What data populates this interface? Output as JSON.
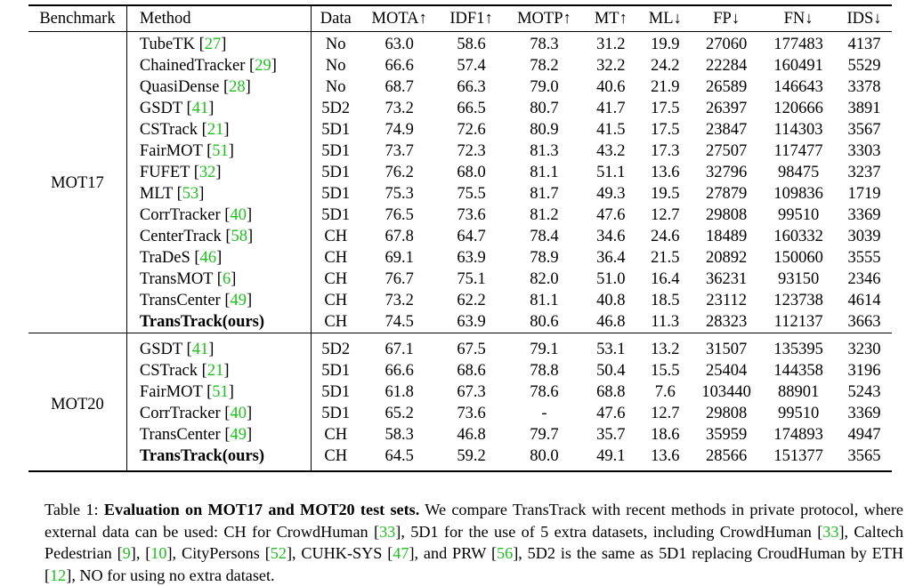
{
  "header": {
    "benchmark": "Benchmark",
    "method": "Method",
    "data": "Data",
    "mota": "MOTA↑",
    "idf1": "IDF1↑",
    "motp": "MOTP↑",
    "mt": "MT↑",
    "ml": "ML↓",
    "fp": "FP↓",
    "fn": "FN↓",
    "ids": "IDS↓"
  },
  "sections": [
    {
      "benchmark": "MOT17",
      "rows": [
        {
          "name": "TubeTK",
          "ref": "27",
          "data": "No",
          "mota": "63.0",
          "idf1": "58.6",
          "motp": "78.3",
          "mt": "31.2",
          "ml": "19.9",
          "fp": "27060",
          "fn": "177483",
          "ids": "4137"
        },
        {
          "name": "ChainedTracker",
          "ref": "29",
          "data": "No",
          "mota": "66.6",
          "idf1": "57.4",
          "motp": "78.2",
          "mt": "32.2",
          "ml": "24.2",
          "fp": "22284",
          "fn": "160491",
          "ids": "5529"
        },
        {
          "name": "QuasiDense",
          "ref": "28",
          "data": "No",
          "mota": "68.7",
          "idf1": "66.3",
          "motp": "79.0",
          "mt": "40.6",
          "ml": "21.9",
          "fp": "26589",
          "fn": "146643",
          "ids": "3378"
        },
        {
          "name": "GSDT",
          "ref": "41",
          "data": "5D2",
          "mota": "73.2",
          "idf1": "66.5",
          "motp": "80.7",
          "mt": "41.7",
          "ml": "17.5",
          "fp": "26397",
          "fn": "120666",
          "ids": "3891"
        },
        {
          "name": "CSTrack",
          "ref": "21",
          "data": "5D1",
          "mota": "74.9",
          "idf1": "72.6",
          "motp": "80.9",
          "mt": "41.5",
          "ml": "17.5",
          "fp": "23847",
          "fn": "114303",
          "ids": "3567"
        },
        {
          "name": "FairMOT",
          "ref": "51",
          "data": "5D1",
          "mota": "73.7",
          "idf1": "72.3",
          "motp": "81.3",
          "mt": "43.2",
          "ml": "17.3",
          "fp": "27507",
          "fn": "117477",
          "ids": "3303"
        },
        {
          "name": "FUFET",
          "ref": "32",
          "data": "5D1",
          "mota": "76.2",
          "idf1": "68.0",
          "motp": "81.1",
          "mt": "51.1",
          "ml": "13.6",
          "fp": "32796",
          "fn": "98475",
          "ids": "3237"
        },
        {
          "name": "MLT",
          "ref": "53",
          "data": "5D1",
          "mota": "75.3",
          "idf1": "75.5",
          "motp": "81.7",
          "mt": "49.3",
          "ml": "19.5",
          "fp": "27879",
          "fn": "109836",
          "ids": "1719"
        },
        {
          "name": "CorrTracker",
          "ref": "40",
          "data": "5D1",
          "mota": "76.5",
          "idf1": "73.6",
          "motp": "81.2",
          "mt": "47.6",
          "ml": "12.7",
          "fp": "29808",
          "fn": "99510",
          "ids": "3369"
        },
        {
          "name": "CenterTrack",
          "ref": "58",
          "data": "CH",
          "mota": "67.8",
          "idf1": "64.7",
          "motp": "78.4",
          "mt": "34.6",
          "ml": "24.6",
          "fp": "18489",
          "fn": "160332",
          "ids": "3039"
        },
        {
          "name": "TraDeS",
          "ref": "46",
          "data": "CH",
          "mota": "69.1",
          "idf1": "63.9",
          "motp": "78.9",
          "mt": "36.4",
          "ml": "21.5",
          "fp": "20892",
          "fn": "150060",
          "ids": "3555"
        },
        {
          "name": "TransMOT",
          "ref": "6",
          "data": "CH",
          "mota": "76.7",
          "idf1": "75.1",
          "motp": "82.0",
          "mt": "51.0",
          "ml": "16.4",
          "fp": "36231",
          "fn": "93150",
          "ids": "2346"
        },
        {
          "name": "TransCenter",
          "ref": "49",
          "data": "CH",
          "mota": "73.2",
          "idf1": "62.2",
          "motp": "81.1",
          "mt": "40.8",
          "ml": "18.5",
          "fp": "23112",
          "fn": "123738",
          "ids": "4614"
        },
        {
          "name": "TransTrack(ours)",
          "ref": "",
          "bold": true,
          "data": "CH",
          "mota": "74.5",
          "idf1": "63.9",
          "motp": "80.6",
          "mt": "46.8",
          "ml": "11.3",
          "fp": "28323",
          "fn": "112137",
          "ids": "3663"
        }
      ]
    },
    {
      "benchmark": "MOT20",
      "rows": [
        {
          "name": "GSDT",
          "ref": "41",
          "data": "5D2",
          "mota": "67.1",
          "idf1": "67.5",
          "motp": "79.1",
          "mt": "53.1",
          "ml": "13.2",
          "fp": "31507",
          "fn": "135395",
          "ids": "3230"
        },
        {
          "name": "CSTrack",
          "ref": "21",
          "data": "5D1",
          "mota": "66.6",
          "idf1": "68.6",
          "motp": "78.8",
          "mt": "50.4",
          "ml": "15.5",
          "fp": "25404",
          "fn": "144358",
          "ids": "3196"
        },
        {
          "name": "FairMOT",
          "ref": "51",
          "data": "5D1",
          "mota": "61.8",
          "idf1": "67.3",
          "motp": "78.6",
          "mt": "68.8",
          "ml": "7.6",
          "fp": "103440",
          "fn": "88901",
          "ids": "5243"
        },
        {
          "name": "CorrTracker",
          "ref": "40",
          "data": "5D1",
          "mota": "65.2",
          "idf1": "73.6",
          "motp": "-",
          "mt": "47.6",
          "ml": "12.7",
          "fp": "29808",
          "fn": "99510",
          "ids": "3369"
        },
        {
          "name": "TransCenter",
          "ref": "49",
          "data": "CH",
          "mota": "58.3",
          "idf1": "46.8",
          "motp": "79.7",
          "mt": "35.7",
          "ml": "18.6",
          "fp": "35959",
          "fn": "174893",
          "ids": "4947"
        },
        {
          "name": "TransTrack(ours)",
          "ref": "",
          "bold": true,
          "data": "CH",
          "mota": "64.5",
          "idf1": "59.2",
          "motp": "80.0",
          "mt": "49.1",
          "ml": "13.6",
          "fp": "28566",
          "fn": "151377",
          "ids": "3565"
        }
      ]
    }
  ],
  "caption": {
    "label": "Table 1: ",
    "lead": "Evaluation on MOT17 and MOT20 test sets.",
    "parts": [
      {
        "t": " We compare TransTrack with recent methods in private protocol, where external data can be used: CH for CrowdHuman "
      },
      {
        "r": "33"
      },
      {
        "t": ", 5D1 for the use of 5 extra datasets, including CrowdHuman "
      },
      {
        "r": "33"
      },
      {
        "t": ", Caltech Pedestrian "
      },
      {
        "r": "9"
      },
      {
        "t": ", "
      },
      {
        "r": "10"
      },
      {
        "t": ", CityPersons "
      },
      {
        "r": "52"
      },
      {
        "t": ", CUHK-SYS "
      },
      {
        "r": "47"
      },
      {
        "t": ", and PRW "
      },
      {
        "r": "56"
      },
      {
        "t": ", 5D2 is the same as 5D1 replacing CroudHuman by ETH "
      },
      {
        "r": "12"
      },
      {
        "t": ", NO for using no extra dataset."
      }
    ]
  }
}
